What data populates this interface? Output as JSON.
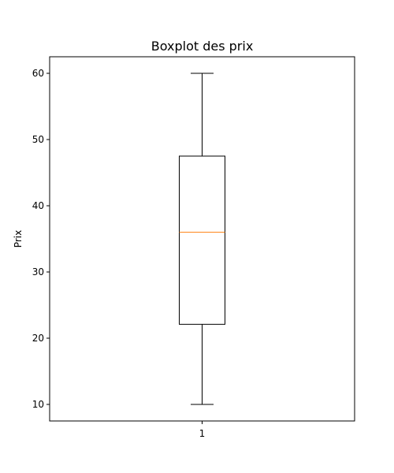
{
  "chart_data": {
    "type": "box",
    "title": "Boxplot des prix",
    "xlabel": "",
    "ylabel": "Prix",
    "categories": [
      "1"
    ],
    "ylim": [
      7.5,
      62.5
    ],
    "yticks": [
      10,
      20,
      30,
      40,
      50,
      60
    ],
    "grid": false,
    "boxes": [
      {
        "category": "1",
        "whisker_low": 10,
        "q1": 22.1,
        "median": 36,
        "q3": 47.5,
        "whisker_high": 60
      }
    ],
    "colors": {
      "box": "#000000",
      "median": "#ff7f0e",
      "axes": "#000000"
    }
  }
}
